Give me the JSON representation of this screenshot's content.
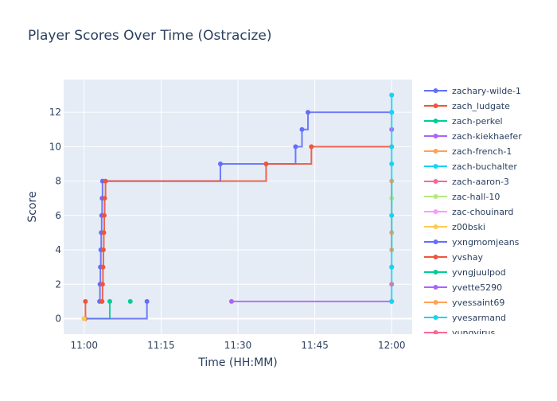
{
  "chart_data": {
    "type": "line",
    "line_shape": "step-hv",
    "title": "Player Scores Over Time (Ostracize)",
    "xlabel": "Time (HH:MM)",
    "ylabel": "Score",
    "xlim": [
      "10:56:00",
      "12:04:00"
    ],
    "ylim": [
      -0.9,
      13.9
    ],
    "x_ticks": [
      "11:00",
      "11:15",
      "11:30",
      "11:45",
      "12:00"
    ],
    "y_ticks": [
      0,
      2,
      4,
      6,
      8,
      10,
      12
    ],
    "grid": true,
    "legend_position": "right",
    "plot_background": "#e5ecf6",
    "series": [
      {
        "name": "zachary-wilde-1",
        "color": "#636efa",
        "points": [
          [
            "11:03:00",
            1
          ],
          [
            "11:03:05",
            2
          ],
          [
            "11:03:10",
            3
          ],
          [
            "11:03:15",
            4
          ],
          [
            "11:03:20",
            5
          ],
          [
            "11:03:25",
            6
          ],
          [
            "11:03:30",
            7
          ],
          [
            "11:03:35",
            8
          ],
          [
            "11:26:35",
            9
          ],
          [
            "11:41:15",
            10
          ],
          [
            "11:42:30",
            11
          ],
          [
            "11:43:40",
            12
          ],
          [
            "12:00:00",
            12
          ]
        ]
      },
      {
        "name": "zach_ludgate",
        "color": "#ef553b",
        "points": [
          [
            "11:03:30",
            1
          ],
          [
            "11:03:35",
            2
          ],
          [
            "11:03:40",
            3
          ],
          [
            "11:03:45",
            4
          ],
          [
            "11:03:50",
            5
          ],
          [
            "11:03:55",
            6
          ],
          [
            "11:04:00",
            7
          ],
          [
            "11:04:10",
            8
          ],
          [
            "11:35:30",
            9
          ],
          [
            "11:44:20",
            10
          ],
          [
            "12:00:00",
            10
          ]
        ]
      },
      {
        "name": "zach-perkel",
        "color": "#00cc96",
        "points": [
          [
            "11:00:00",
            0
          ],
          [
            "11:05:00",
            1
          ]
        ]
      },
      {
        "name": "zach-kiekhaefer",
        "color": "#ab63fa",
        "points": [
          [
            "11:28:45",
            1
          ],
          [
            "12:00:00",
            1
          ]
        ]
      },
      {
        "name": "zach-french-1",
        "color": "#FFA15A",
        "points": [
          [
            "12:00:00",
            4
          ],
          [
            "12:00:00",
            8
          ]
        ]
      },
      {
        "name": "zach-aaron-3",
        "color": "#FF6692",
        "points": [
          [
            "12:00:00",
            2
          ]
        ]
      },
      {
        "name": "zac-hall-10",
        "color": "#B6E880",
        "points": [
          [
            "12:00:00",
            7
          ]
        ]
      },
      {
        "name": "zac-chouinard",
        "color": "#FF97FF",
        "points": [
          [
            "12:00:00",
            6
          ]
        ]
      },
      {
        "name": "yxngmomjeans",
        "color": "#636efa",
        "points": [
          [
            "11:00:00",
            0
          ],
          [
            "11:12:15",
            1
          ]
        ]
      },
      {
        "name": "yvshay",
        "color": "#ef553b",
        "points": [
          [
            "11:00:10",
            0
          ],
          [
            "11:00:15",
            1
          ]
        ]
      },
      {
        "name": "yvngjuulpod",
        "color": "#00cc96",
        "points": [
          [
            "11:09:00",
            1
          ]
        ]
      },
      {
        "name": "yvette5290",
        "color": "#ab63fa",
        "points": [
          [
            "12:00:00",
            11
          ]
        ]
      },
      {
        "name": "yvessaint69",
        "color": "#FFA15A",
        "points": [
          [
            "12:00:00",
            5
          ]
        ]
      },
      {
        "name": "yungvirus",
        "color": "#FF6692",
        "points": [
          [
            "12:00:00",
            3
          ]
        ]
      },
      {
        "name": "z00bski",
        "color": "#FECB52",
        "points": [
          [
            "11:00:00",
            0
          ]
        ]
      },
      {
        "name": "zach-buchalter",
        "color": "#19d3f3",
        "points": [
          [
            "12:00:00",
            1
          ],
          [
            "12:00:00",
            3
          ],
          [
            "12:00:00",
            6
          ],
          [
            "12:00:00",
            9
          ],
          [
            "12:00:00",
            10
          ],
          [
            "12:00:00",
            12
          ],
          [
            "12:00:00",
            13
          ]
        ]
      },
      {
        "name": "yvesarmand",
        "color": "#19d3f3",
        "points": [
          [
            "12:00:00",
            13
          ]
        ]
      }
    ],
    "legend_order": [
      "zachary-wilde-1",
      "zach_ludgate",
      "zach-perkel",
      "zach-kiekhaefer",
      "zach-french-1",
      "zach-buchalter",
      "zach-aaron-3",
      "zac-hall-10",
      "zac-chouinard",
      "z00bski",
      "yxngmomjeans",
      "yvshay",
      "yvngjuulpod",
      "yvette5290",
      "yvessaint69",
      "yvesarmand",
      "yungvirus"
    ]
  }
}
